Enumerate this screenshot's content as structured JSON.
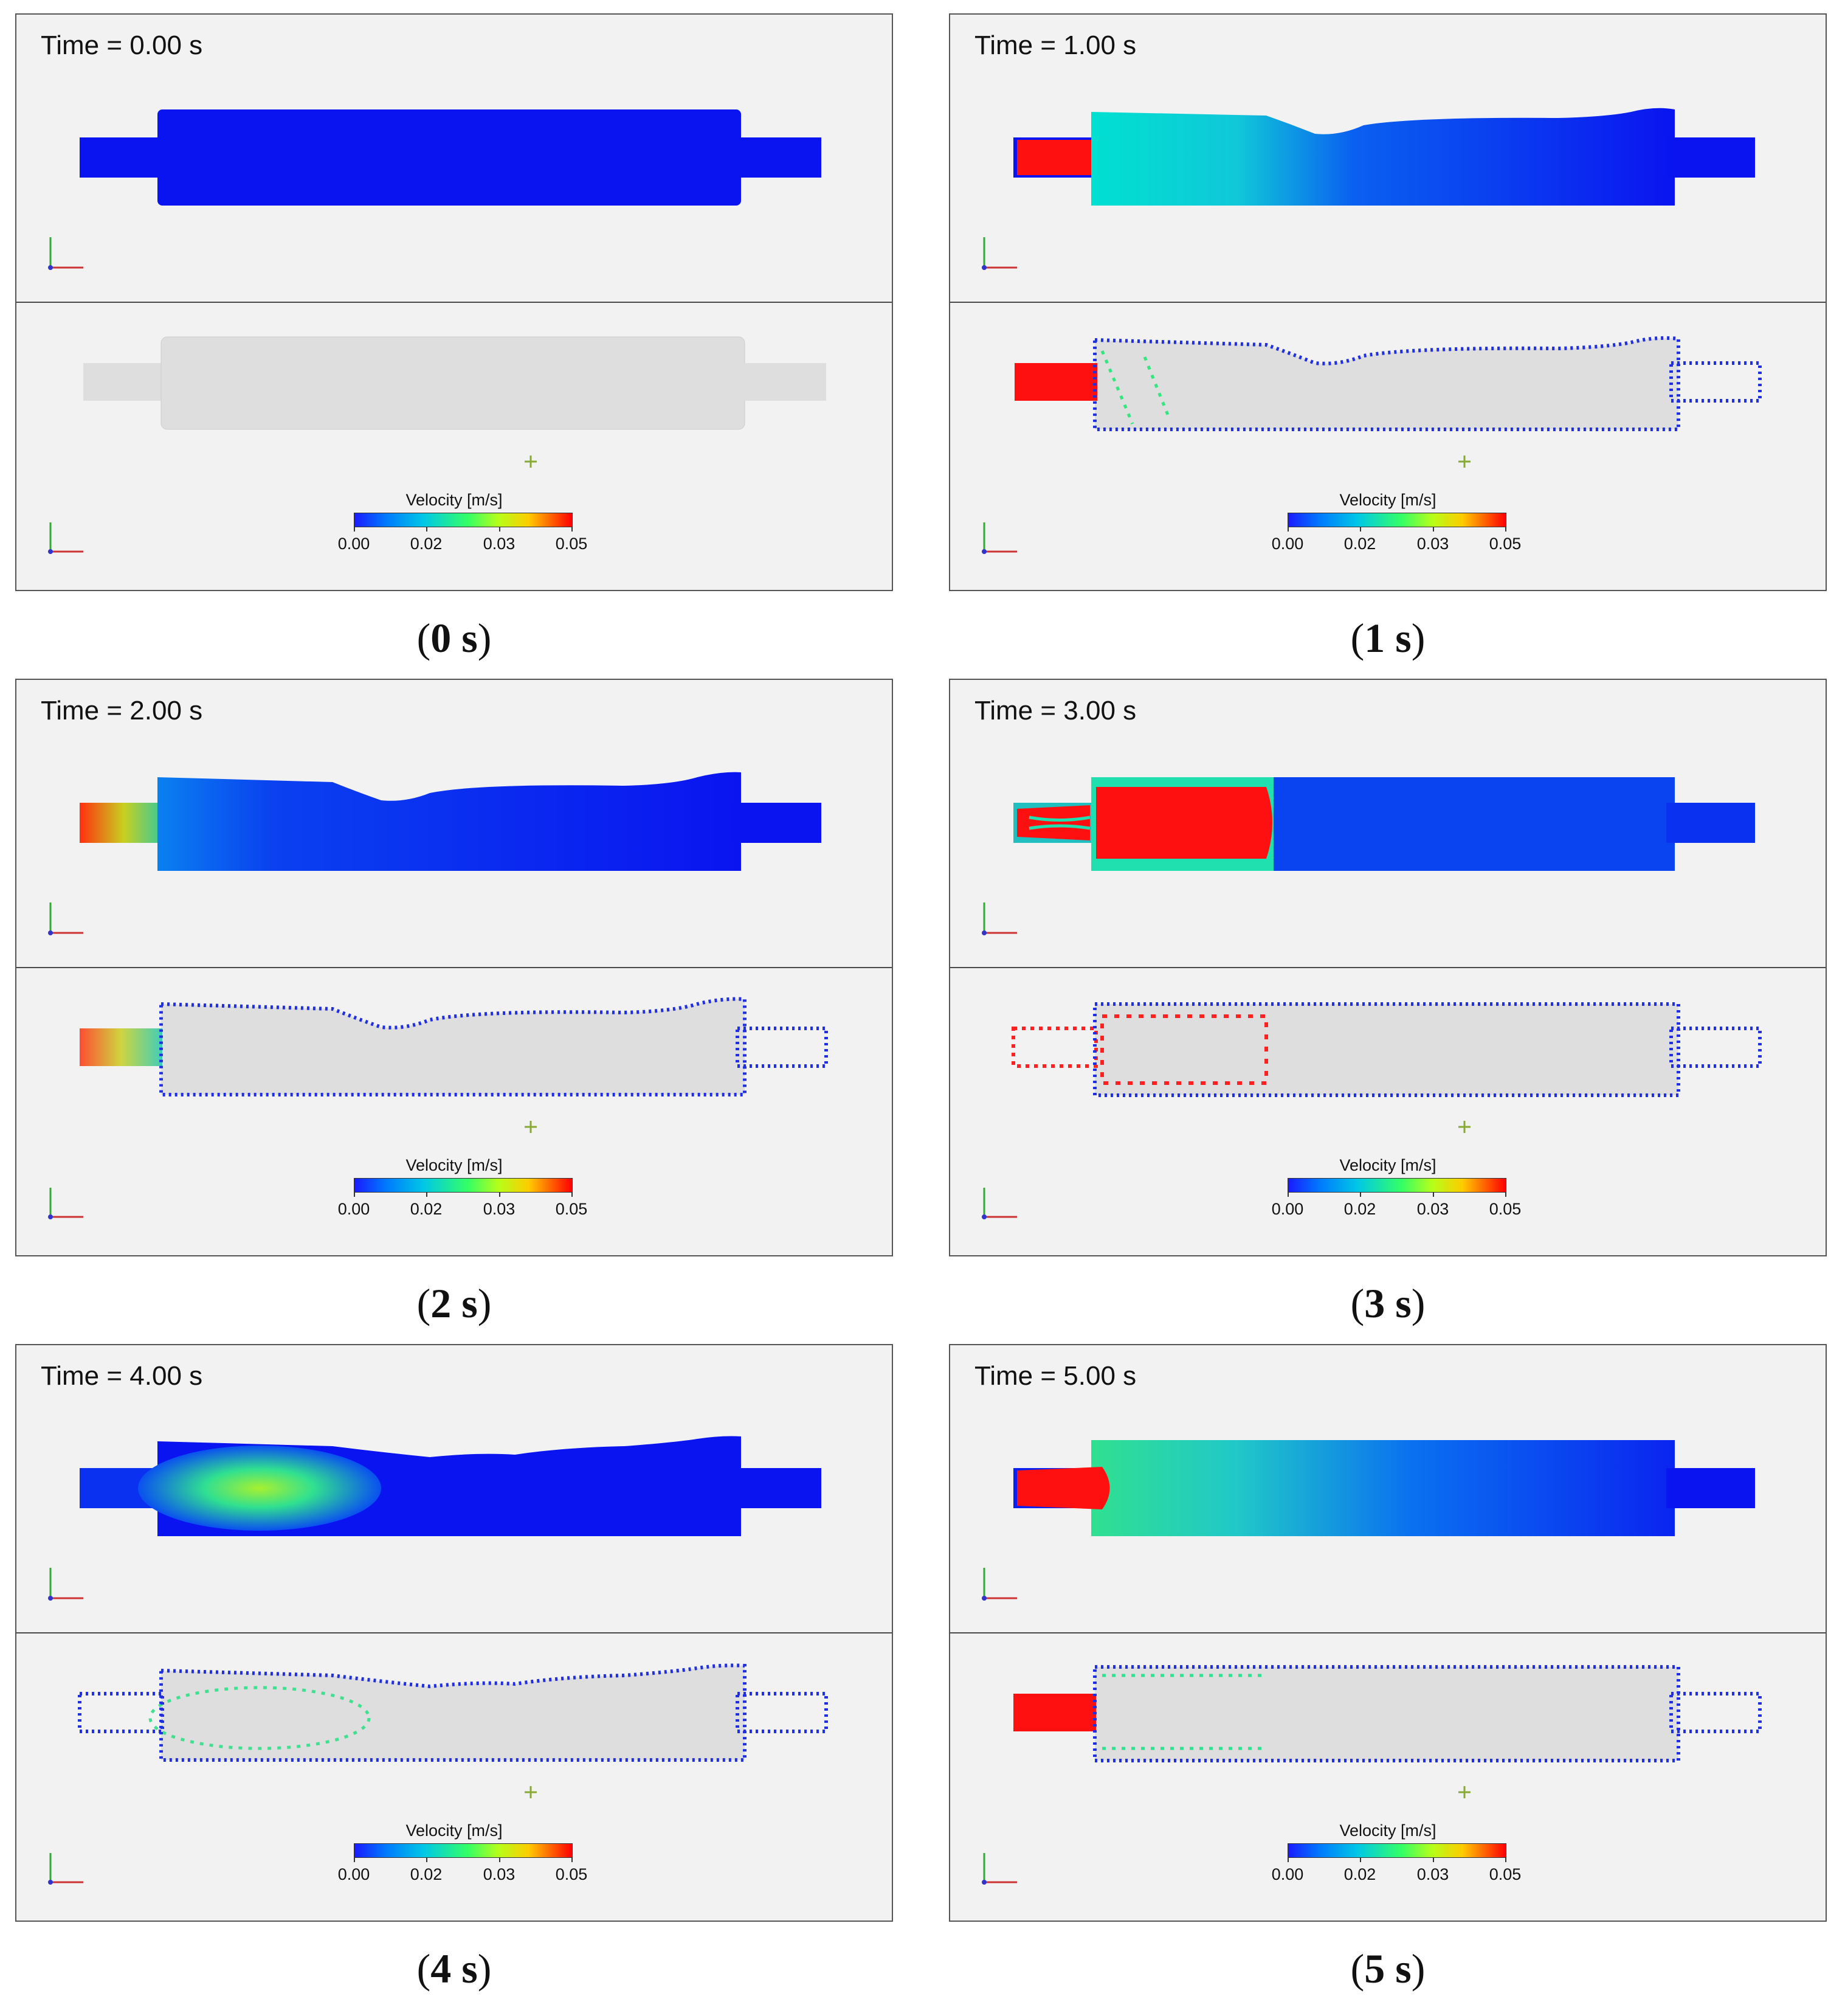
{
  "colorbar": {
    "title": "Velocity [m/s]",
    "ticks": [
      "0.00",
      "0.02",
      "0.03",
      "0.05"
    ],
    "colors": [
      "#1a1aff",
      "#0077ff",
      "#00c8e6",
      "#33ff66",
      "#b4ff1a",
      "#ffcc00",
      "#ff6600",
      "#ff0000"
    ]
  },
  "panels": [
    {
      "time_label": "Time = 0.00 s",
      "caption": "(0 s)",
      "caption_inner": "0 s"
    },
    {
      "time_label": "Time = 1.00 s",
      "caption": "(1 s)",
      "caption_inner": "1 s"
    },
    {
      "time_label": "Time = 2.00 s",
      "caption": "(2 s)",
      "caption_inner": "2 s"
    },
    {
      "time_label": "Time = 3.00 s",
      "caption": "(3 s)",
      "caption_inner": "3 s"
    },
    {
      "time_label": "Time = 4.00 s",
      "caption": "(4 s)",
      "caption_inner": "4 s"
    },
    {
      "time_label": "Time = 5.00 s",
      "caption": "(5 s)",
      "caption_inner": "5 s"
    }
  ],
  "colors": {
    "low_velocity": "#0a14f0",
    "high_velocity": "#ff0000",
    "mid_velocity": "#33e680",
    "body_gray": "#dddddd",
    "background": "#f2f2f2"
  }
}
